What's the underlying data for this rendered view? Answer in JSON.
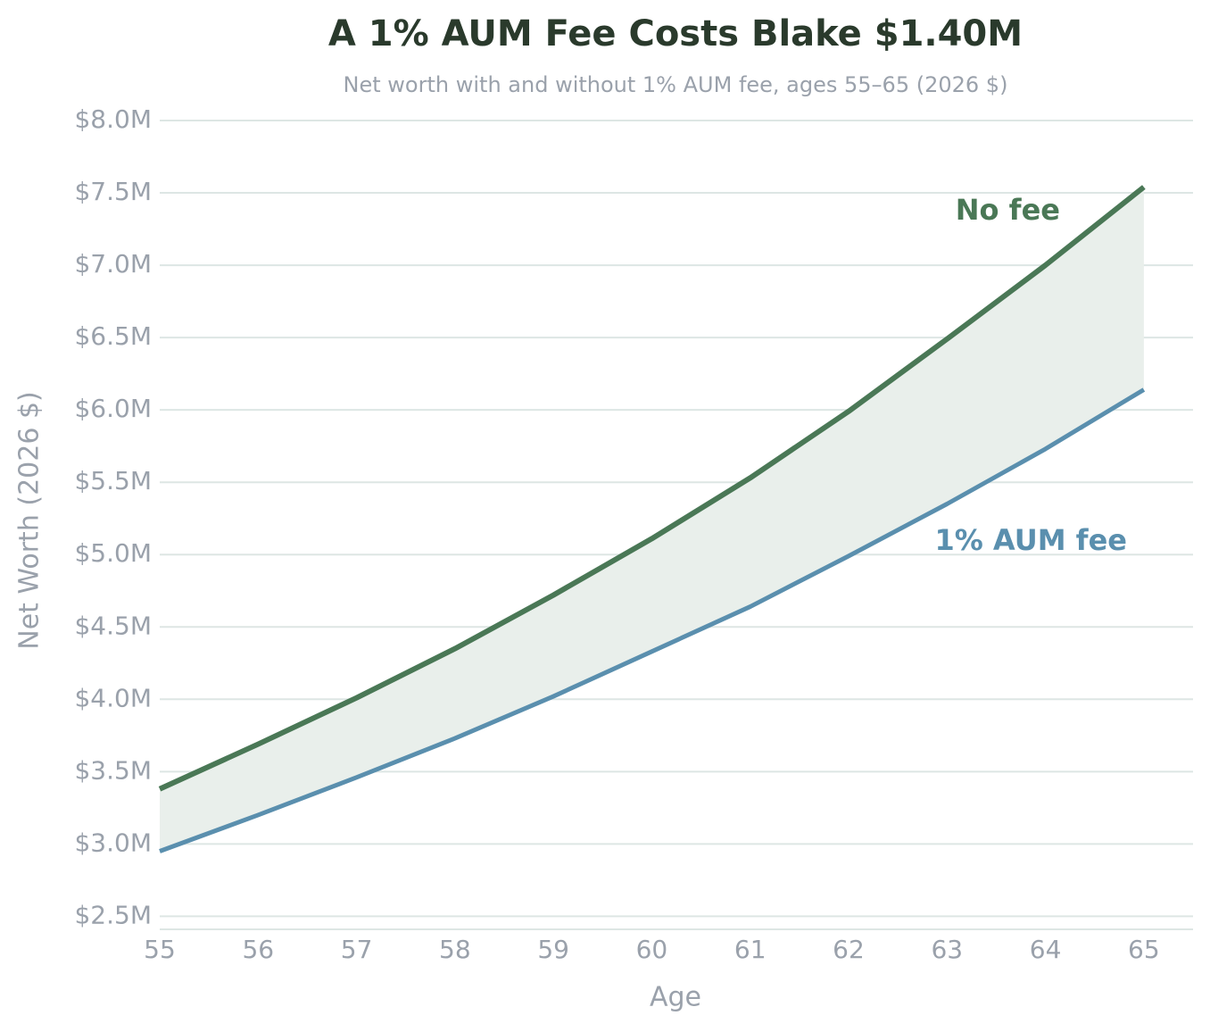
{
  "chart_data": {
    "type": "line",
    "title": "A 1% AUM Fee Costs Blake $1.40M",
    "subtitle": "Net worth with and without 1% AUM fee, ages 55–65 (2026 $)",
    "x_label": "Age",
    "y_label": "Net Worth (2026 $)",
    "x": [
      55,
      56,
      57,
      58,
      59,
      60,
      61,
      62,
      63,
      64,
      65
    ],
    "series": [
      {
        "name": "No fee",
        "color": "#4a7856",
        "values": [
          3380000,
          3690000,
          4010000,
          4350000,
          4720000,
          5110000,
          5530000,
          5990000,
          6490000,
          7000000,
          7540000
        ]
      },
      {
        "name": "1% AUM fee",
        "color": "#5a8fae",
        "values": [
          2950000,
          3200000,
          3460000,
          3730000,
          4020000,
          4330000,
          4640000,
          4990000,
          5350000,
          5730000,
          6140000
        ]
      }
    ],
    "fill_between": true,
    "fill_color": "#e9efeb",
    "xlim": [
      55,
      65.5
    ],
    "xticks": [
      55,
      56,
      57,
      58,
      59,
      60,
      61,
      62,
      63,
      64,
      65
    ],
    "ylim": [
      2410000,
      8050000
    ],
    "yticks": [
      {
        "value": 2500000,
        "label": "$2.5M"
      },
      {
        "value": 3000000,
        "label": "$3.0M"
      },
      {
        "value": 3500000,
        "label": "$3.5M"
      },
      {
        "value": 4000000,
        "label": "$4.0M"
      },
      {
        "value": 4500000,
        "label": "$4.5M"
      },
      {
        "value": 5000000,
        "label": "$5.0M"
      },
      {
        "value": 5500000,
        "label": "$5.5M"
      },
      {
        "value": 6000000,
        "label": "$6.0M"
      },
      {
        "value": 6500000,
        "label": "$6.5M"
      },
      {
        "value": 7000000,
        "label": "$7.0M"
      },
      {
        "value": 7500000,
        "label": "$7.5M"
      },
      {
        "value": 8000000,
        "label": "$8.0M"
      }
    ],
    "grid": true
  }
}
